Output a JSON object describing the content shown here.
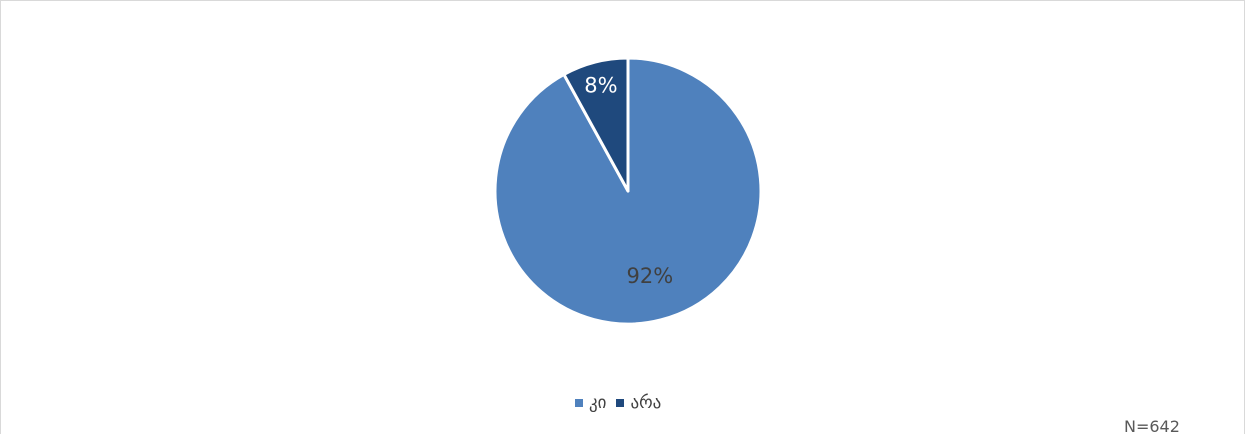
{
  "chart_data": {
    "type": "pie",
    "categories": [
      "კი",
      "არა"
    ],
    "values": [
      92,
      8
    ],
    "data_labels": [
      "92%",
      "8%"
    ],
    "colors": [
      "#4f81bd",
      "#1f497d"
    ],
    "label_colors": [
      "#404040",
      "#ffffff"
    ],
    "legend_position": "bottom",
    "start_angle_deg": 0,
    "direction": "clockwise"
  },
  "legend": {
    "items": [
      {
        "label": "კი",
        "color": "#4f81bd"
      },
      {
        "label": "არა",
        "color": "#1f497d"
      }
    ]
  },
  "note": "N=642"
}
